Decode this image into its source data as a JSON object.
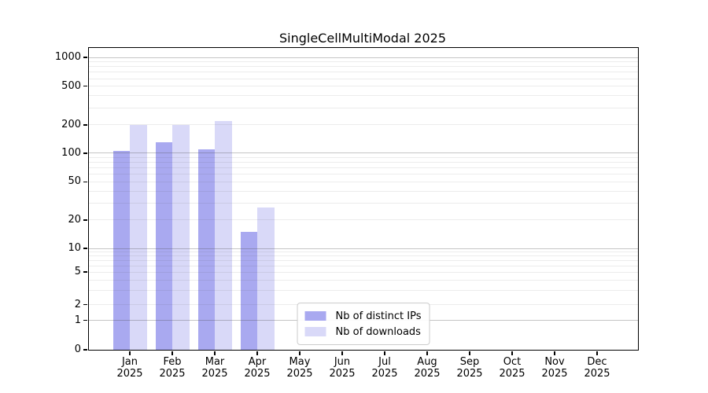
{
  "title": "SingleCellMultiModal 2025",
  "chart_data": {
    "type": "bar",
    "title": "SingleCellMultiModal 2025",
    "x_categories": [
      "Jan",
      "Feb",
      "Mar",
      "Apr",
      "May",
      "Jun",
      "Jul",
      "Aug",
      "Sep",
      "Oct",
      "Nov",
      "Dec"
    ],
    "x_year": "2025",
    "series": [
      {
        "name": "Nb of distinct IPs",
        "color": "#a9a9f0",
        "values": [
          105,
          130,
          110,
          15,
          null,
          null,
          null,
          null,
          null,
          null,
          null,
          null
        ]
      },
      {
        "name": "Nb of downloads",
        "color": "#d9d9f8",
        "values": [
          200,
          200,
          220,
          27,
          null,
          null,
          null,
          null,
          null,
          null,
          null,
          null
        ]
      }
    ],
    "yticks": [
      0,
      1,
      2,
      5,
      10,
      20,
      50,
      100,
      200,
      500,
      1000
    ],
    "y_scale": "symlog",
    "ylim": [
      0,
      1250
    ],
    "xlabel": "",
    "ylabel": "",
    "grid": "horizontal",
    "legend_position": "lower center"
  }
}
